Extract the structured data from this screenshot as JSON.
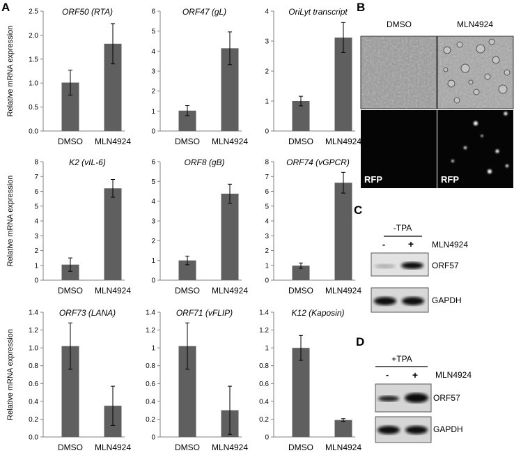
{
  "panel_labels": {
    "a": "A",
    "b": "B",
    "c": "C",
    "d": "D"
  },
  "colors": {
    "bar": "#5f5f5f",
    "error": "#000000",
    "axis": "#808080"
  },
  "chart_data": [
    {
      "type": "bar",
      "title": "ORF50 (RTA)",
      "ylabel": "Relative mRNA expression",
      "categories": [
        "DMSO",
        "MLN4924"
      ],
      "values": [
        1.01,
        1.82
      ],
      "errors": [
        0.26,
        0.42
      ],
      "ylim": [
        0,
        2.5
      ],
      "yticks": [
        "0.0",
        "0.5",
        "1.0",
        "1.5",
        "2.0",
        "2.5"
      ],
      "grid": false
    },
    {
      "type": "bar",
      "title": "ORF47 (gL)",
      "ylabel": "",
      "categories": [
        "DMSO",
        "MLN4924"
      ],
      "values": [
        1.02,
        4.14
      ],
      "errors": [
        0.25,
        0.82
      ],
      "ylim": [
        0,
        6
      ],
      "yticks": [
        "0",
        "1",
        "2",
        "3",
        "4",
        "5",
        "6"
      ],
      "grid": false
    },
    {
      "type": "bar",
      "title": "OriLyt transcript",
      "ylabel": "",
      "categories": [
        "DMSO",
        "MLN4924"
      ],
      "values": [
        1.0,
        3.12
      ],
      "errors": [
        0.16,
        0.5
      ],
      "ylim": [
        0,
        4
      ],
      "yticks": [
        "0",
        "1",
        "2",
        "3",
        "4"
      ],
      "grid": false
    },
    {
      "type": "bar",
      "title": "K2 (vIL-6)",
      "ylabel": "Relative mRNA expression",
      "categories": [
        "DMSO",
        "MLN4924"
      ],
      "values": [
        1.05,
        6.2
      ],
      "errors": [
        0.45,
        0.6
      ],
      "ylim": [
        0,
        8
      ],
      "yticks": [
        "0",
        "1",
        "2",
        "3",
        "4",
        "5",
        "6",
        "7",
        "8"
      ],
      "grid": false
    },
    {
      "type": "bar",
      "title": "ORF8 (gB)",
      "ylabel": "",
      "categories": [
        "DMSO",
        "MLN4924"
      ],
      "values": [
        1.0,
        4.38
      ],
      "errors": [
        0.22,
        0.48
      ],
      "ylim": [
        0,
        6
      ],
      "yticks": [
        "0",
        "1",
        "2",
        "3",
        "4",
        "5",
        "6"
      ],
      "grid": false
    },
    {
      "type": "bar",
      "title": "ORF74 (vGPCR)",
      "ylabel": "",
      "categories": [
        "DMSO",
        "MLN4924"
      ],
      "values": [
        0.98,
        6.58
      ],
      "errors": [
        0.18,
        0.7
      ],
      "ylim": [
        0,
        8
      ],
      "yticks": [
        "0",
        "1",
        "2",
        "3",
        "4",
        "5",
        "6",
        "7",
        "8"
      ],
      "grid": false
    },
    {
      "type": "bar",
      "title": "ORF73 (LANA)",
      "ylabel": "Relative mRNA expression",
      "categories": [
        "DMSO",
        "MLN4924"
      ],
      "values": [
        1.02,
        0.35
      ],
      "errors": [
        0.26,
        0.22
      ],
      "ylim": [
        0,
        1.4
      ],
      "yticks": [
        "0.0",
        "0.2",
        "0.4",
        "0.6",
        "0.8",
        "1.0",
        "1.2",
        "1.4"
      ],
      "grid": false
    },
    {
      "type": "bar",
      "title": "ORF71 (vFLIP)",
      "ylabel": "",
      "categories": [
        "DMSO",
        "MLN4924"
      ],
      "values": [
        1.02,
        0.3
      ],
      "errors": [
        0.26,
        0.27
      ],
      "ylim": [
        0,
        1.4
      ],
      "yticks": [
        "0",
        "0.2",
        "0.4",
        "0.6",
        "0.8",
        "1",
        "1.2",
        "1.4"
      ],
      "grid": false
    },
    {
      "type": "bar",
      "title": "K12 (Kaposin)",
      "ylabel": "",
      "categories": [
        "DMSO",
        "MLN4924"
      ],
      "values": [
        1.0,
        0.19
      ],
      "errors": [
        0.14,
        0.015
      ],
      "ylim": [
        0,
        1.4
      ],
      "yticks": [
        "0",
        "0.2",
        "0.4",
        "0.6",
        "0.8",
        "1",
        "1.2",
        "1.4"
      ],
      "grid": false
    }
  ],
  "micrographs": {
    "col_labels": [
      "DMSO",
      "MLN4924"
    ],
    "rfp_label": "RFP"
  },
  "blot_c": {
    "condition": "-TPA",
    "minus": "-",
    "plus": "+",
    "treatment": "MLN4924",
    "band1": "ORF57",
    "band2": "GAPDH"
  },
  "blot_d": {
    "condition": "+TPA",
    "minus": "-",
    "plus": "+",
    "treatment": "MLN4924",
    "band1": "ORF57",
    "band2": "GAPDH"
  }
}
